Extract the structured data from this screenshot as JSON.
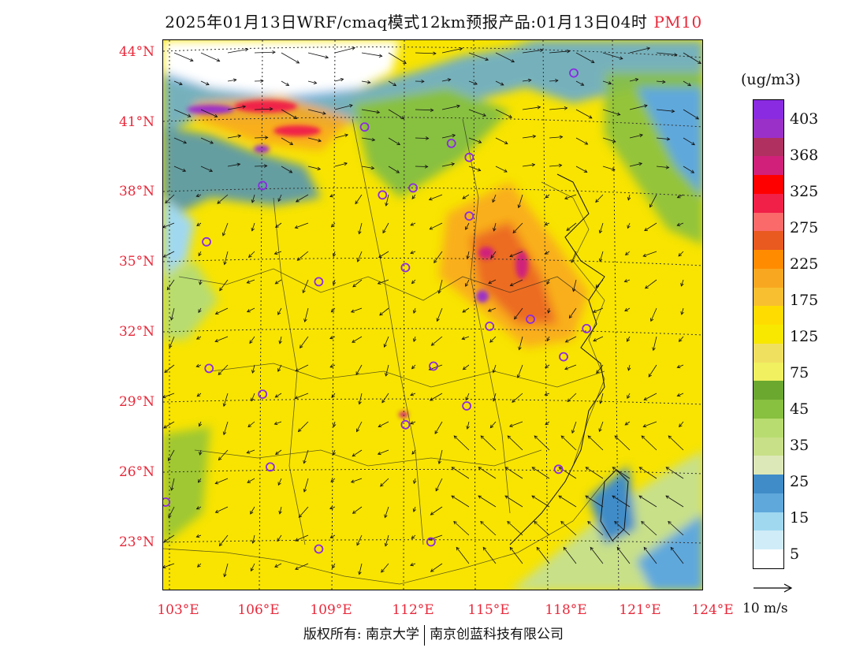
{
  "title": {
    "main": "2025年01月13日WRF/cmaq模式12km预报产品:01月13日04时",
    "pollutant": "PM10"
  },
  "axes": {
    "lat_labels": [
      "44°N",
      "41°N",
      "38°N",
      "35°N",
      "32°N",
      "29°N",
      "26°N",
      "23°N"
    ],
    "lon_labels": [
      "103°E",
      "106°E",
      "109°E",
      "112°E",
      "115°E",
      "118°E",
      "121°E",
      "124°E"
    ]
  },
  "legend": {
    "unit": "(ug/m3)",
    "levels": [
      "403",
      "368",
      "325",
      "275",
      "225",
      "175",
      "125",
      "75",
      "45",
      "35",
      "25",
      "15",
      "5"
    ],
    "colors": [
      "#8a2be2",
      "#9b30c8",
      "#b03060",
      "#d0207a",
      "#ff0000",
      "#f02048",
      "#fa6a6a",
      "#e85a20",
      "#ff8c00",
      "#f8a820",
      "#f8c030",
      "#ffdc00",
      "#f8e800",
      "#f0e060",
      "#f0f060",
      "#6aa830",
      "#88c040",
      "#b8dc70",
      "#c8e088",
      "#dde8b8",
      "#3f8cc8",
      "#5fa8dc",
      "#a0d8f0",
      "#d0ecf8",
      "#ffffff"
    ]
  },
  "wind": {
    "reference_label": "10 m/s"
  },
  "footer": {
    "left": "版权所有: 南京大学",
    "right": "南京创蓝科技有限公司"
  },
  "stations": [
    {
      "lon": 118.9,
      "lat": 43.1
    },
    {
      "lon": 110.7,
      "lat": 40.8
    },
    {
      "lon": 114.1,
      "lat": 40.1
    },
    {
      "lon": 114.8,
      "lat": 39.5
    },
    {
      "lon": 106.7,
      "lat": 38.3
    },
    {
      "lon": 111.4,
      "lat": 37.9
    },
    {
      "lon": 112.6,
      "lat": 38.2
    },
    {
      "lon": 114.8,
      "lat": 37.0
    },
    {
      "lon": 104.5,
      "lat": 35.9
    },
    {
      "lon": 112.3,
      "lat": 34.8
    },
    {
      "lon": 108.9,
      "lat": 34.2
    },
    {
      "lon": 115.6,
      "lat": 32.3
    },
    {
      "lon": 117.2,
      "lat": 32.6
    },
    {
      "lon": 119.4,
      "lat": 32.2
    },
    {
      "lon": 118.5,
      "lat": 31.0
    },
    {
      "lon": 104.6,
      "lat": 30.5
    },
    {
      "lon": 113.4,
      "lat": 30.6
    },
    {
      "lon": 106.7,
      "lat": 29.4
    },
    {
      "lon": 114.7,
      "lat": 28.9
    },
    {
      "lon": 112.3,
      "lat": 28.1
    },
    {
      "lon": 118.3,
      "lat": 26.2
    },
    {
      "lon": 107.0,
      "lat": 26.3
    },
    {
      "lon": 102.9,
      "lat": 24.8
    },
    {
      "lon": 108.9,
      "lat": 22.8
    },
    {
      "lon": 113.3,
      "lat": 23.1
    }
  ]
}
